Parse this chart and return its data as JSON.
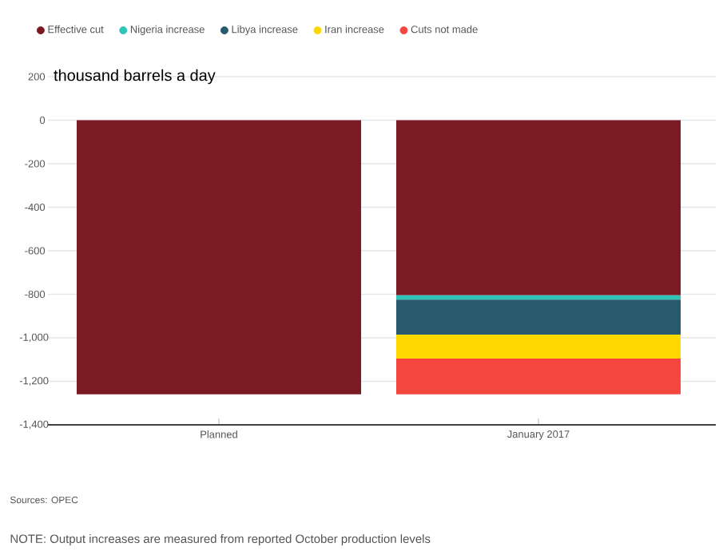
{
  "chart_data": {
    "type": "bar",
    "stacked": true,
    "categories": [
      "Planned",
      "January 2017"
    ],
    "series": [
      {
        "name": "Effective cut",
        "color": "#7b1a22",
        "values": [
          -1260,
          -805
        ]
      },
      {
        "name": "Nigeria increase",
        "color": "#2ec4b6",
        "values": [
          null,
          -20
        ]
      },
      {
        "name": "Libya increase",
        "color": "#265a6c",
        "values": [
          null,
          -160
        ]
      },
      {
        "name": "Iran increase",
        "color": "#ffd700",
        "values": [
          null,
          -110
        ]
      },
      {
        "name": "Cuts not made",
        "color": "#f5473e",
        "values": [
          null,
          -165
        ]
      }
    ],
    "ylim": [
      -1400,
      200
    ],
    "yticks": [
      {
        "value": -1400,
        "label": "-1,400"
      },
      {
        "value": -1200,
        "label": "-1,200"
      },
      {
        "value": -1000,
        "label": "-1,000"
      },
      -800,
      -600,
      -400,
      -200,
      0,
      200
    ],
    "ylabel": "thousand barrels a day",
    "grid": "y",
    "legend": "top left",
    "annotations": [
      "Sources: OPEC",
      "NOTE: Output increases are measured from reported October production levels"
    ]
  }
}
